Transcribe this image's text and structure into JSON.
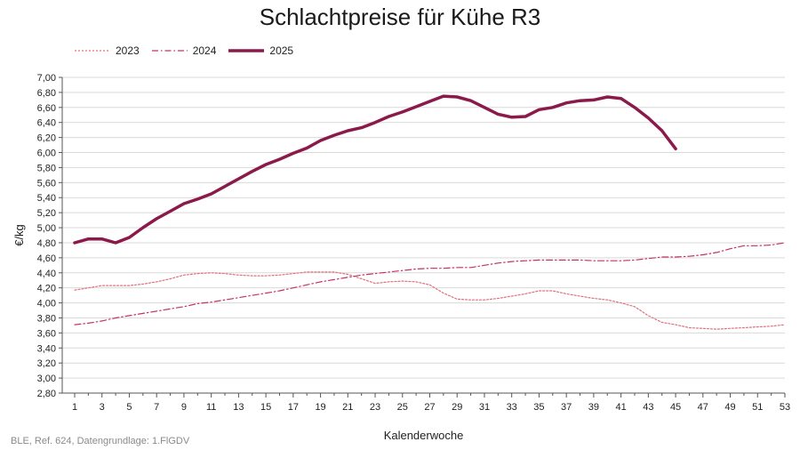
{
  "source": "BLE, Ref. 624, Datengrundlage: 1.FlGDV",
  "chart_data": {
    "type": "line",
    "title": "Schlachtpreise für Kühe R3",
    "xlabel": "Kalenderwoche",
    "ylabel": "€/kg",
    "xlim": [
      1,
      53
    ],
    "ylim": [
      2.8,
      7.0
    ],
    "x_ticks": [
      1,
      3,
      5,
      7,
      9,
      11,
      13,
      15,
      17,
      19,
      21,
      23,
      25,
      27,
      29,
      31,
      33,
      35,
      37,
      39,
      41,
      43,
      45,
      47,
      49,
      51,
      53
    ],
    "y_ticks": [
      "2,80",
      "3,00",
      "3,20",
      "3,40",
      "3,60",
      "3,80",
      "4,00",
      "4,20",
      "4,40",
      "4,60",
      "4,80",
      "5,00",
      "5,20",
      "5,40",
      "5,60",
      "5,80",
      "6,00",
      "6,20",
      "6,40",
      "6,60",
      "6,80",
      "7,00"
    ],
    "grid": "horizontal",
    "legend_position": "top-left",
    "colors": {
      "series": "#8b1a4a",
      "series_light": "#e0707a",
      "grid": "#d9d9d9",
      "axis": "#555555"
    },
    "series": [
      {
        "name": "2023",
        "style": "dotted",
        "x": [
          1,
          2,
          3,
          4,
          5,
          6,
          7,
          8,
          9,
          10,
          11,
          12,
          13,
          14,
          15,
          16,
          17,
          18,
          19,
          20,
          21,
          22,
          23,
          24,
          25,
          26,
          27,
          28,
          29,
          30,
          31,
          32,
          33,
          34,
          35,
          36,
          37,
          38,
          39,
          40,
          41,
          42,
          43,
          44,
          45,
          46,
          47,
          48,
          49,
          50,
          51,
          52,
          53
        ],
        "values": [
          4.17,
          4.2,
          4.23,
          4.23,
          4.23,
          4.25,
          4.28,
          4.32,
          4.37,
          4.39,
          4.4,
          4.39,
          4.37,
          4.36,
          4.36,
          4.37,
          4.39,
          4.41,
          4.41,
          4.41,
          4.38,
          4.32,
          4.26,
          4.28,
          4.29,
          4.28,
          4.24,
          4.13,
          4.05,
          4.04,
          4.04,
          4.06,
          4.09,
          4.12,
          4.16,
          4.16,
          4.12,
          4.09,
          4.06,
          4.04,
          4.0,
          3.95,
          3.83,
          3.74,
          3.71,
          3.67,
          3.66,
          3.65,
          3.66,
          3.67,
          3.68,
          3.69,
          3.71
        ]
      },
      {
        "name": "2024",
        "style": "dashdot",
        "x": [
          1,
          2,
          3,
          4,
          5,
          6,
          7,
          8,
          9,
          10,
          11,
          12,
          13,
          14,
          15,
          16,
          17,
          18,
          19,
          20,
          21,
          22,
          23,
          24,
          25,
          26,
          27,
          28,
          29,
          30,
          31,
          32,
          33,
          34,
          35,
          36,
          37,
          38,
          39,
          40,
          41,
          42,
          43,
          44,
          45,
          46,
          47,
          48,
          49,
          50,
          51,
          52,
          53
        ],
        "values": [
          3.71,
          3.73,
          3.76,
          3.8,
          3.83,
          3.86,
          3.89,
          3.92,
          3.95,
          3.99,
          4.01,
          4.04,
          4.07,
          4.1,
          4.13,
          4.16,
          4.2,
          4.24,
          4.28,
          4.31,
          4.34,
          4.37,
          4.39,
          4.41,
          4.43,
          4.45,
          4.46,
          4.46,
          4.47,
          4.47,
          4.5,
          4.53,
          4.55,
          4.56,
          4.57,
          4.57,
          4.57,
          4.57,
          4.56,
          4.56,
          4.56,
          4.57,
          4.59,
          4.61,
          4.61,
          4.62,
          4.64,
          4.67,
          4.72,
          4.76,
          4.76,
          4.77,
          4.8
        ]
      },
      {
        "name": "2025",
        "style": "solid",
        "x": [
          1,
          2,
          3,
          4,
          5,
          6,
          7,
          8,
          9,
          10,
          11,
          12,
          13,
          14,
          15,
          16,
          17,
          18,
          19,
          20,
          21,
          22,
          23,
          24,
          25,
          26,
          27,
          28,
          29,
          30,
          31,
          32,
          33,
          34,
          35,
          36,
          37,
          38,
          39,
          40,
          41,
          42,
          43,
          44,
          45
        ],
        "values": [
          4.8,
          4.85,
          4.85,
          4.8,
          4.87,
          5.0,
          5.12,
          5.22,
          5.32,
          5.38,
          5.45,
          5.55,
          5.65,
          5.75,
          5.84,
          5.91,
          5.99,
          6.06,
          6.16,
          6.23,
          6.29,
          6.33,
          6.4,
          6.48,
          6.54,
          6.61,
          6.68,
          6.75,
          6.74,
          6.69,
          6.6,
          6.51,
          6.47,
          6.48,
          6.57,
          6.6,
          6.66,
          6.69,
          6.7,
          6.74,
          6.72,
          6.6,
          6.46,
          6.29,
          6.05
        ]
      }
    ]
  }
}
